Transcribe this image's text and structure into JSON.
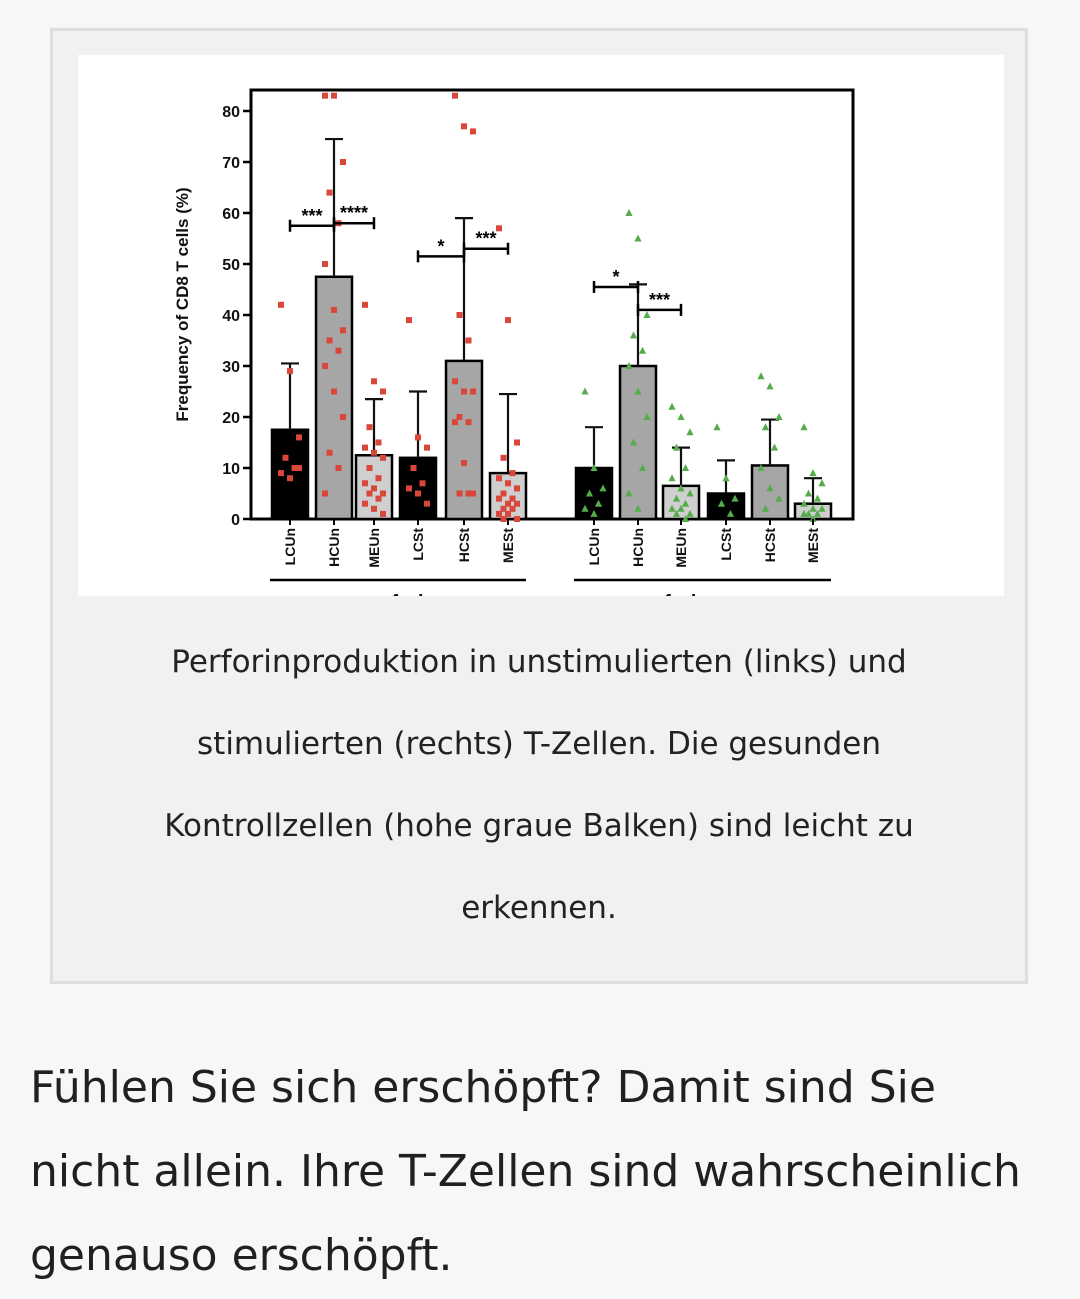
{
  "figure": {
    "caption": "Perforinproduktion in unstimulierten (links) und stimulierten (rechts) T-Zellen. Die gesunden Kontrollzellen (hohe graue Balken) sind leicht zu erkennen."
  },
  "article": {
    "paragraph": "Fühlen Sie sich erschöpft? Damit sind Sie nicht allein. Ihre T-Zellen sind wahrscheinlich genauso erschöpft."
  },
  "chart_data": {
    "type": "bar",
    "title": "",
    "ylabel": "Frequency of CD8 T cells (%)",
    "xlabel": "",
    "ylim": [
      0,
      80
    ],
    "yticks": [
      0,
      10,
      20,
      30,
      40,
      50,
      60,
      70,
      80
    ],
    "grid": false,
    "categories": [
      "LCUn",
      "HCUn",
      "MEUn",
      "LCSt",
      "HCSt",
      "MESt",
      "LCUn",
      "HCUn",
      "MEUn",
      "LCSt",
      "HCSt",
      "MESt"
    ],
    "groups": [
      {
        "label": "perforin",
        "indices": [
          0,
          1,
          2,
          3,
          4,
          5
        ]
      },
      {
        "label": "perforin+gzm+",
        "indices": [
          6,
          7,
          8,
          9,
          10,
          11
        ]
      }
    ],
    "bar_colors": [
      "#000000",
      "#a6a6a6",
      "#cfcfcf",
      "#000000",
      "#a6a6a6",
      "#cfcfcf",
      "#000000",
      "#a6a6a6",
      "#cfcfcf",
      "#000000",
      "#a6a6a6",
      "#cfcfcf"
    ],
    "point_colors": {
      "perforin": "#d9463a",
      "perforin+gzm+": "#54ad48"
    },
    "values": [
      17.5,
      47.5,
      12.5,
      12,
      31,
      9,
      10,
      30,
      6.5,
      5,
      10.5,
      3
    ],
    "error_upper": [
      30.5,
      74.5,
      23.5,
      25,
      59,
      24.5,
      18,
      46,
      14,
      11.5,
      19.5,
      8
    ],
    "points": [
      [
        42,
        29,
        16,
        12,
        10,
        9,
        8,
        10
      ],
      [
        83,
        83,
        70,
        64,
        58,
        50,
        41,
        37,
        35,
        33,
        30,
        25,
        20,
        13,
        10,
        5
      ],
      [
        42,
        27,
        25,
        18,
        15,
        14,
        13,
        12,
        10,
        8,
        7,
        6,
        5,
        5,
        4,
        3,
        2,
        1
      ],
      [
        39,
        16,
        14,
        10,
        7,
        6,
        5,
        3
      ],
      [
        83,
        77,
        76,
        40,
        35,
        27,
        25,
        25,
        20,
        19,
        19,
        11,
        5,
        5,
        5
      ],
      [
        57,
        39,
        15,
        12,
        9,
        8,
        7,
        6,
        5,
        4,
        4,
        3,
        3,
        2,
        2,
        1,
        1,
        0,
        0
      ],
      [
        25,
        10,
        6,
        5,
        3,
        2,
        1
      ],
      [
        60,
        55,
        40,
        36,
        33,
        30,
        25,
        20,
        15,
        10,
        5,
        2
      ],
      [
        22,
        20,
        17,
        14,
        10,
        8,
        6,
        5,
        4,
        3,
        2,
        2,
        1,
        1,
        0
      ],
      [
        18,
        8,
        4,
        3,
        1
      ],
      [
        28,
        26,
        20,
        18,
        14,
        10,
        6,
        4,
        2
      ],
      [
        18,
        9,
        7,
        5,
        4,
        3,
        2,
        2,
        1,
        1,
        1,
        0
      ]
    ],
    "significance": [
      {
        "from": 0,
        "to": 1,
        "label": "***",
        "y": 57.5
      },
      {
        "from": 1,
        "to": 2,
        "label": "****",
        "y": 58
      },
      {
        "from": 3,
        "to": 4,
        "label": "*",
        "y": 51.5
      },
      {
        "from": 4,
        "to": 5,
        "label": "***",
        "y": 53
      },
      {
        "from": 6,
        "to": 7,
        "label": "*",
        "y": 45.5
      },
      {
        "from": 7,
        "to": 8,
        "label": "***",
        "y": 41
      }
    ]
  }
}
